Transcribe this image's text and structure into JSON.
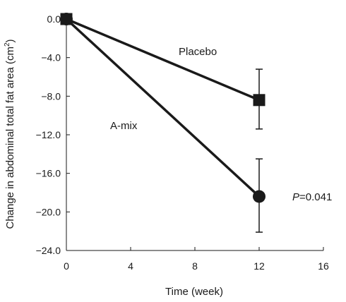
{
  "chart_data": {
    "type": "line",
    "x": [
      0,
      12
    ],
    "series": [
      {
        "name": "Placebo",
        "values": [
          0.0,
          -8.4
        ],
        "err_low": [
          0.0,
          -11.4
        ],
        "err_high": [
          0.0,
          -5.2
        ],
        "marker": "square"
      },
      {
        "name": "A-mix",
        "values": [
          0.0,
          -18.4
        ],
        "err_low": [
          0.0,
          -22.1
        ],
        "err_high": [
          0.0,
          -14.5
        ],
        "marker": "circle"
      }
    ],
    "xlabel": "Time (week)",
    "ylabel_main": "Change in abdominal total fat area (cm",
    "ylabel_sup": "2",
    "ylabel_close": ")",
    "xticks": [
      "0",
      "4",
      "8",
      "12",
      "16"
    ],
    "xtick_values": [
      0,
      4,
      8,
      12,
      16
    ],
    "yticks": [
      "0.0",
      "−4.0",
      "−8.0",
      "−12.0",
      "−16.0",
      "−20.0",
      "−24.0"
    ],
    "ytick_values": [
      0,
      -4,
      -8,
      -12,
      -16,
      -20,
      -24
    ],
    "xlim": [
      0,
      16
    ],
    "ylim": [
      -24,
      0
    ],
    "grid": false,
    "annotation_p_italic": "P",
    "annotation_p_value": "=0.041",
    "colors": {
      "line": "#1a1a1a",
      "marker": "#1a1a1a"
    }
  }
}
